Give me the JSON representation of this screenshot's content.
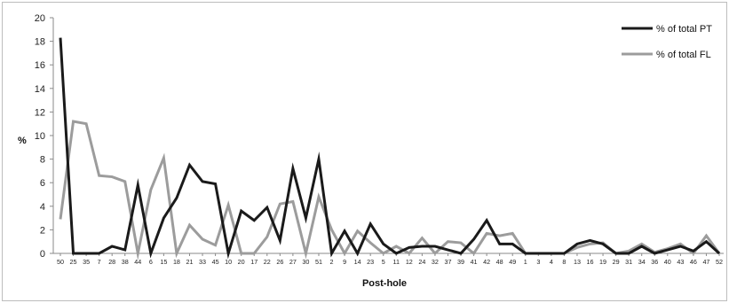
{
  "chart_data": {
    "type": "line",
    "title": "",
    "xlabel": "Post-hole",
    "ylabel": "%",
    "ylim": [
      0,
      20
    ],
    "yticks": [
      "0",
      "2",
      "4",
      "6",
      "8",
      "10",
      "12",
      "14",
      "16",
      "18",
      "20"
    ],
    "grid": false,
    "legend_position": "top-right",
    "categories": [
      "50",
      "25",
      "35",
      "7",
      "28",
      "38",
      "44",
      "6",
      "15",
      "18",
      "21",
      "33",
      "45",
      "10",
      "20",
      "17",
      "22",
      "26",
      "27",
      "30",
      "51",
      "2",
      "9",
      "14",
      "23",
      "5",
      "11",
      "12",
      "24",
      "32",
      "37",
      "39",
      "41",
      "42",
      "48",
      "49",
      "1",
      "3",
      "4",
      "8",
      "13",
      "16",
      "19",
      "29",
      "31",
      "34",
      "36",
      "40",
      "43",
      "46",
      "47",
      "52"
    ],
    "series": [
      {
        "name": "% of total PT",
        "color": "#1a1a1a",
        "values": [
          18.3,
          0,
          0,
          0,
          0.6,
          0.3,
          5.8,
          0,
          3.0,
          4.7,
          7.5,
          6.1,
          5.9,
          0,
          3.6,
          2.8,
          3.9,
          1.1,
          7.2,
          3.0,
          8.0,
          0,
          1.9,
          0,
          2.5,
          0.8,
          0,
          0.5,
          0.6,
          0.6,
          0.3,
          0,
          1.2,
          2.8,
          0.8,
          0.8,
          0,
          0,
          0,
          0,
          0.8,
          1.1,
          0.8,
          0,
          0,
          0.6,
          0,
          0.3,
          0.6,
          0.2,
          1.0,
          0
        ]
      },
      {
        "name": "% of total FL",
        "color": "#9c9c9c",
        "values": [
          2.9,
          11.2,
          11.0,
          6.6,
          6.5,
          6.1,
          0,
          5.4,
          8.1,
          0,
          2.4,
          1.2,
          0.7,
          4.1,
          0,
          0,
          1.4,
          4.2,
          4.4,
          0,
          4.8,
          2.0,
          0,
          1.9,
          0.9,
          0,
          0.6,
          0,
          1.3,
          0,
          1.0,
          0.9,
          0,
          1.7,
          1.5,
          1.7,
          0,
          0,
          0,
          0,
          0.5,
          0.8,
          0.9,
          0,
          0.2,
          0.8,
          0.1,
          0.4,
          0.8,
          0,
          1.5,
          0
        ]
      }
    ]
  }
}
